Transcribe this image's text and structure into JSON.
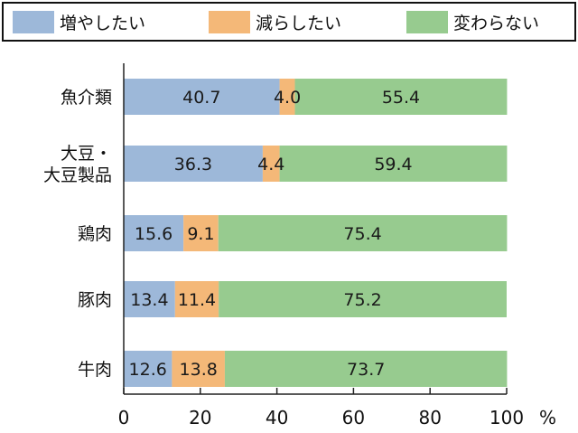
{
  "legend": {
    "items": [
      {
        "label": "増やしたい",
        "color": "#9db8d9"
      },
      {
        "label": "減らしたい",
        "color": "#f4b878"
      },
      {
        "label": "変わらない",
        "color": "#97cb8f"
      }
    ]
  },
  "chart_data": {
    "type": "bar",
    "orientation": "horizontal",
    "stacked": true,
    "categories": [
      "魚介類",
      "大豆・\n大豆製品",
      "鶏肉",
      "豚肉",
      "牛肉"
    ],
    "series": [
      {
        "name": "増やしたい",
        "values": [
          40.7,
          36.3,
          15.6,
          13.4,
          12.6
        ]
      },
      {
        "name": "減らしたい",
        "values": [
          4.0,
          4.4,
          9.1,
          11.4,
          13.8
        ]
      },
      {
        "name": "変わらない",
        "values": [
          55.4,
          59.4,
          75.4,
          75.2,
          73.7
        ]
      }
    ],
    "value_labels": [
      [
        "40.7",
        "4.0",
        "55.4"
      ],
      [
        "36.3",
        "4.4",
        "59.4"
      ],
      [
        "15.6",
        "9.1",
        "75.4"
      ],
      [
        "13.4",
        "11.4",
        "75.2"
      ],
      [
        "12.6",
        "13.8",
        "73.7"
      ]
    ],
    "xlim": [
      0,
      100
    ],
    "xticks": [
      "0",
      "20",
      "40",
      "60",
      "80",
      "100"
    ],
    "x_unit": "%",
    "legend_position": "top",
    "grid": false
  }
}
